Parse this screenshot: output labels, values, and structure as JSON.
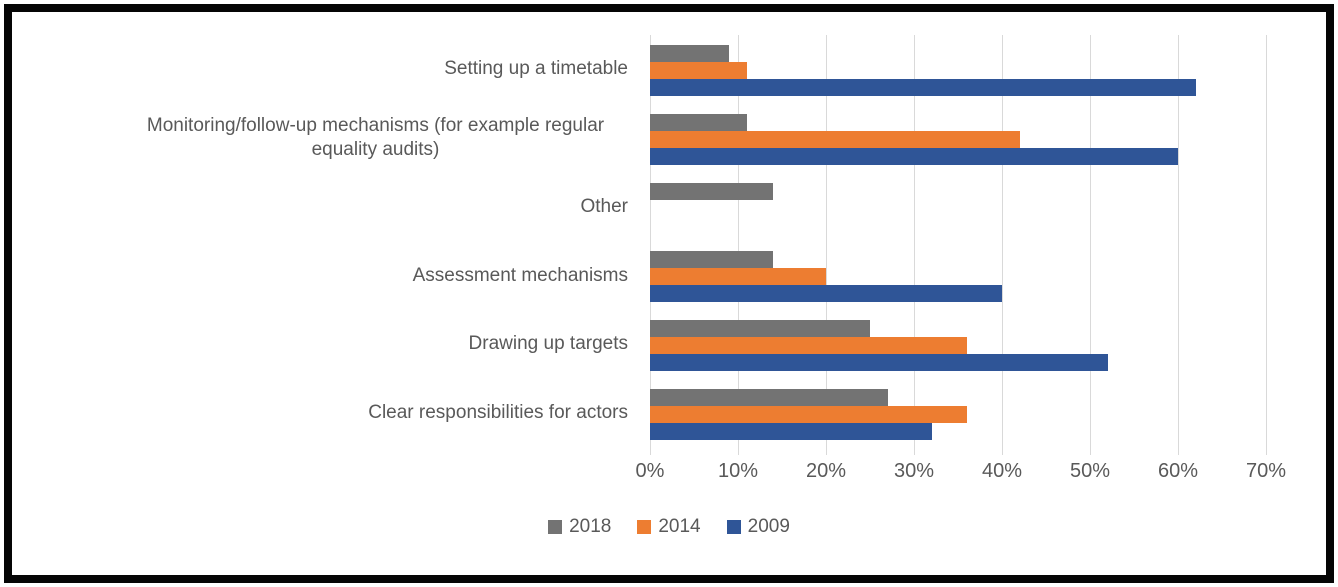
{
  "frame": {
    "border_color": "#050505",
    "background": "#ffffff"
  },
  "chart_data": {
    "type": "bar",
    "orientation": "horizontal",
    "title": "",
    "xlabel": "",
    "ylabel": "",
    "categories": [
      "Setting up a timetable",
      "Monitoring/follow-up mechanisms (for example regular equality audits)",
      "Other",
      "Assessment mechanisms",
      "Drawing up targets",
      "Clear responsibilities for actors"
    ],
    "series": [
      {
        "name": "2018",
        "color": "#737373",
        "values": [
          9,
          11,
          14,
          14,
          25,
          27
        ]
      },
      {
        "name": "2014",
        "color": "#ED7D31",
        "values": [
          11,
          42,
          0,
          20,
          36,
          36
        ]
      },
      {
        "name": "2009",
        "color": "#2F5597",
        "values": [
          62,
          60,
          0,
          40,
          52,
          32
        ]
      }
    ],
    "x_axis": {
      "ticks": [
        "0%",
        "10%",
        "20%",
        "30%",
        "40%",
        "50%",
        "60%",
        "70%"
      ],
      "min": 0,
      "max": 70,
      "unit": "%"
    },
    "grid": "vertical",
    "gridline_color": "#D9D9D9",
    "axis_text_color": "#595959",
    "legend": {
      "position": "bottom",
      "entries": [
        "2018",
        "2014",
        "2009"
      ]
    }
  }
}
